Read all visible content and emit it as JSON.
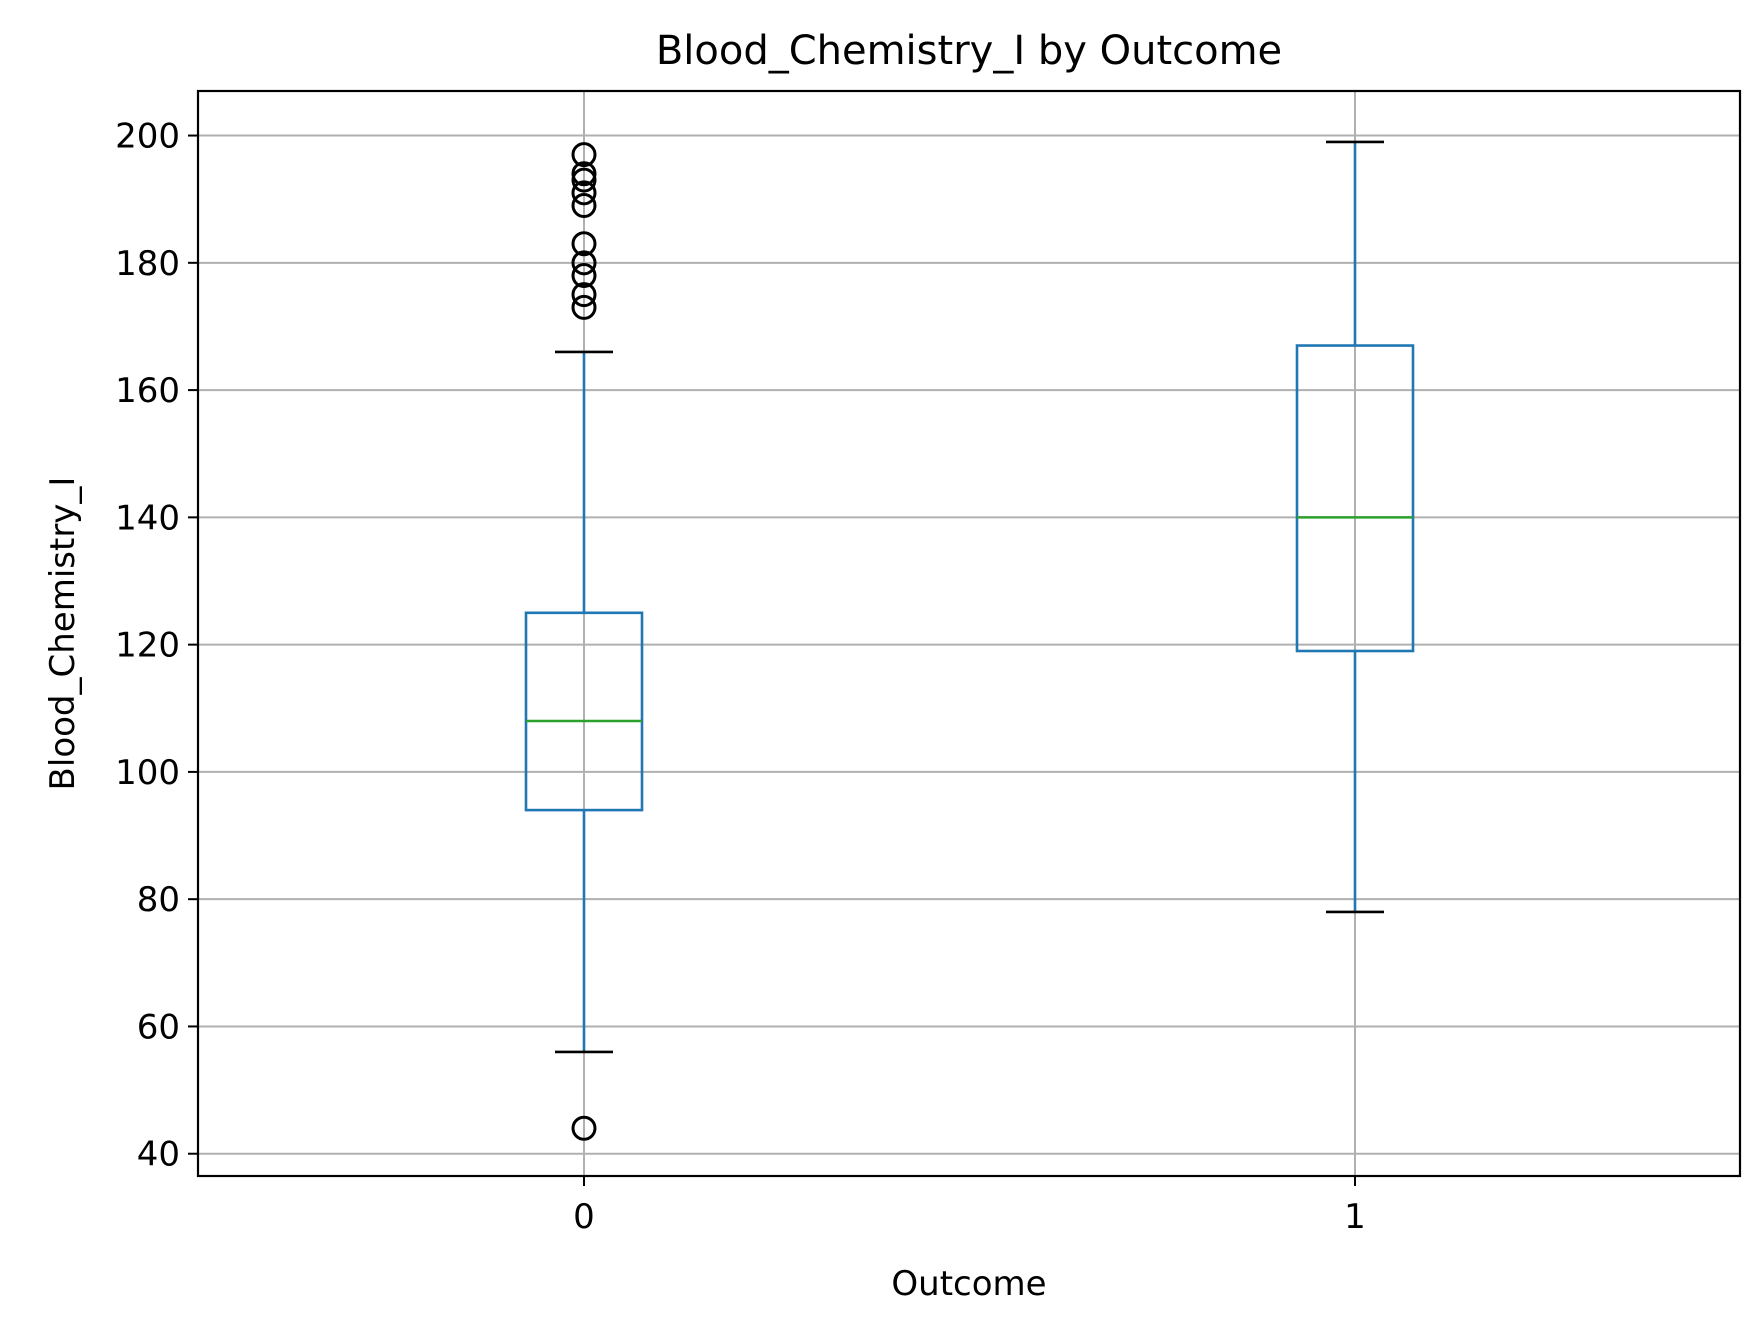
{
  "chart_data": {
    "type": "box",
    "title": "Blood_Chemistry_I by Outcome",
    "xlabel": "Outcome",
    "ylabel": "Blood_Chemistry_I",
    "categories": [
      "0",
      "1"
    ],
    "ylim": [
      36.5,
      207
    ],
    "yticks": [
      40,
      60,
      80,
      100,
      120,
      140,
      160,
      180,
      200
    ],
    "grid": true,
    "boxes": [
      {
        "category": "0",
        "whisker_low": 56,
        "q1": 94,
        "median": 108,
        "q3": 125,
        "whisker_high": 166,
        "outliers": [
          44,
          173,
          175,
          178,
          180,
          183,
          189,
          191,
          193,
          194,
          197
        ]
      },
      {
        "category": "1",
        "whisker_low": 78,
        "q1": 119,
        "median": 140,
        "q3": 167,
        "whisker_high": 199,
        "outliers": []
      }
    ],
    "colors": {
      "box": "#1f77b4",
      "median": "#2ca02c",
      "cap": "#000000",
      "outlier": "#000000",
      "grid": "#b0b0b0"
    }
  }
}
